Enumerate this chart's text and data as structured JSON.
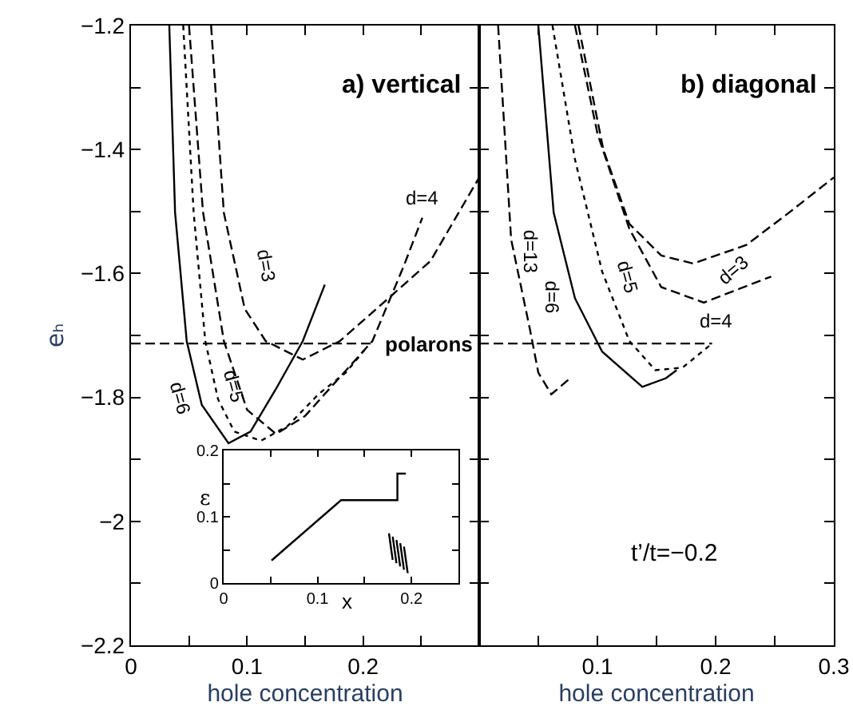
{
  "chart_data": [
    {
      "type": "line",
      "title": "a) vertical",
      "xlabel": "hole concentration",
      "ylabel": "eₕ",
      "xlim": [
        0,
        0.3
      ],
      "ylim": [
        -2.2,
        -1.2
      ],
      "xticks": [
        0,
        {
          "value": 0.05,
          "label": null
        },
        0.1,
        {
          "value": 0.15,
          "label": null
        },
        0.2,
        {
          "value": 0.25,
          "label": null
        }
      ],
      "yticks": [
        {
          "value": -2.2,
          "label": "−2.2"
        },
        {
          "value": -2.1,
          "label": null
        },
        {
          "value": -2.0,
          "label": "−2"
        },
        {
          "value": -1.9,
          "label": null
        },
        {
          "value": -1.8,
          "label": "−1.8"
        },
        {
          "value": -1.7,
          "label": null
        },
        {
          "value": -1.6,
          "label": "−1.6"
        },
        {
          "value": -1.5,
          "label": null
        },
        {
          "value": -1.4,
          "label": "−1.4"
        },
        {
          "value": -1.3,
          "label": null
        },
        {
          "value": -1.2,
          "label": "−1.2"
        }
      ],
      "series": [
        {
          "name": "d=6",
          "color": "#000000",
          "line_style": "solid",
          "x": [
            0.033,
            0.038,
            0.048,
            0.061,
            0.084,
            0.103,
            0.125,
            0.148,
            0.167
          ],
          "values": [
            -1.2,
            -1.502,
            -1.709,
            -1.812,
            -1.874,
            -1.855,
            -1.786,
            -1.709,
            -1.618
          ]
        },
        {
          "name": "d=5",
          "color": "#000000",
          "line_style": "dotted",
          "x": [
            0.045,
            0.054,
            0.064,
            0.075,
            0.089,
            0.112,
            0.135,
            0.162,
            0.185,
            0.201
          ],
          "values": [
            -1.2,
            -1.502,
            -1.709,
            -1.803,
            -1.855,
            -1.87,
            -1.846,
            -1.794,
            -1.76,
            -1.724
          ]
        },
        {
          "name": "d=4",
          "color": "#000000",
          "line_style": "dashed",
          "x": [
            0.05,
            0.062,
            0.08,
            0.1,
            0.125,
            0.15,
            0.171,
            0.208,
            0.235,
            0.251
          ],
          "values": [
            -1.2,
            -1.5,
            -1.709,
            -1.82,
            -1.859,
            -1.83,
            -1.786,
            -1.709,
            -1.588,
            -1.51
          ]
        },
        {
          "name": "d=3",
          "color": "#000000",
          "line_style": "dashed",
          "x": [
            0.069,
            0.08,
            0.098,
            0.116,
            0.148,
            0.18,
            0.217,
            0.258,
            0.3
          ],
          "values": [
            -1.2,
            -1.502,
            -1.657,
            -1.709,
            -1.739,
            -1.709,
            -1.648,
            -1.58,
            -1.445
          ]
        },
        {
          "name": "polarons",
          "color": "#000000",
          "line_style": "dashed",
          "x": [
            0,
            0.21
          ],
          "values": [
            -1.713,
            -1.713
          ]
        }
      ]
    },
    {
      "type": "line",
      "title": "b) diagonal",
      "xlabel": "hole concentration",
      "annotations": [
        "t’/t=−0.2"
      ],
      "xlim": [
        0,
        0.3
      ],
      "ylim": [
        -2.2,
        -1.2
      ],
      "tick_labels": "x",
      "xticks": [
        {
          "value": 0.05,
          "label": null
        },
        0.1,
        {
          "value": 0.15,
          "label": null
        },
        0.2,
        {
          "value": 0.25,
          "label": null
        },
        0.3
      ],
      "yticks": [
        {
          "value": -2.1,
          "label": null
        },
        {
          "value": -2.0,
          "label": null
        },
        {
          "value": -1.9,
          "label": null
        },
        {
          "value": -1.8,
          "label": null
        },
        {
          "value": -1.7,
          "label": null
        },
        {
          "value": -1.6,
          "label": null
        },
        {
          "value": -1.5,
          "label": null
        },
        {
          "value": -1.4,
          "label": null
        },
        {
          "value": -1.3,
          "label": null
        }
      ],
      "series": [
        {
          "name": "d=13",
          "color": "#000000",
          "line_style": "dashed",
          "x": [
            0.016,
            0.027,
            0.043,
            0.05,
            0.061,
            0.077
          ],
          "values": [
            -1.2,
            -1.545,
            -1.691,
            -1.76,
            -1.795,
            -1.769
          ]
        },
        {
          "name": "d=6",
          "color": "#000000",
          "line_style": "solid",
          "x": [
            0.05,
            0.063,
            0.081,
            0.104,
            0.138,
            0.158,
            0.167
          ],
          "values": [
            -1.2,
            -1.502,
            -1.64,
            -1.726,
            -1.783,
            -1.769,
            -1.756
          ]
        },
        {
          "name": "d=5",
          "color": "#000000",
          "line_style": "dotted",
          "x": [
            0.062,
            0.081,
            0.104,
            0.127,
            0.149,
            0.172,
            0.197
          ],
          "values": [
            -1.2,
            -1.416,
            -1.597,
            -1.709,
            -1.756,
            -1.752,
            -1.713
          ]
        },
        {
          "name": "d=4",
          "color": "#000000",
          "line_style": "dashed",
          "x": [
            0.081,
            0.1,
            0.127,
            0.154,
            0.19,
            0.217,
            0.247
          ],
          "values": [
            -1.2,
            -1.374,
            -1.528,
            -1.622,
            -1.647,
            -1.627,
            -1.605
          ]
        },
        {
          "name": "d=3",
          "color": "#000000",
          "line_style": "dashed",
          "x": [
            0.084,
            0.105,
            0.127,
            0.154,
            0.181,
            0.226,
            0.262,
            0.3
          ],
          "values": [
            -1.2,
            -1.4,
            -1.52,
            -1.571,
            -1.584,
            -1.554,
            -1.502,
            -1.445
          ]
        },
        {
          "color": "#000000",
          "line_style": "dashed",
          "x": [
            0,
            0.197
          ],
          "values": [
            -1.713,
            -1.713
          ]
        }
      ]
    },
    {
      "type": "line",
      "xlabel": "x",
      "ylabel": "ε",
      "xlim": [
        0,
        0.25
      ],
      "ylim": [
        0,
        0.2
      ],
      "xticks": [
        0,
        {
          "value": 0.05,
          "label": null
        },
        0.1,
        {
          "value": 0.15,
          "label": null
        },
        0.2
      ],
      "yticks": [
        0,
        {
          "value": 0.05,
          "label": null
        },
        0.1,
        {
          "value": 0.15,
          "label": null
        },
        0.2
      ],
      "series": [
        {
          "color": "#000000",
          "line_style": "solid",
          "x": [
            0.051,
            0.125,
            0.185,
            0.185,
            0.194
          ],
          "values": [
            0.034,
            0.125,
            0.125,
            0.165,
            0.165
          ]
        },
        {
          "color": "#000000",
          "line_style": "solid",
          "x": [
            0.176,
            0.18
          ],
          "values": [
            0.075,
            0.035
          ]
        },
        {
          "color": "#000000",
          "line_style": "solid",
          "x": [
            0.18,
            0.184
          ],
          "values": [
            0.07,
            0.03
          ]
        },
        {
          "color": "#000000",
          "line_style": "solid",
          "x": [
            0.184,
            0.188
          ],
          "values": [
            0.065,
            0.025
          ]
        },
        {
          "color": "#000000",
          "line_style": "solid",
          "x": [
            0.188,
            0.192
          ],
          "values": [
            0.06,
            0.02
          ]
        },
        {
          "color": "#000000",
          "line_style": "solid",
          "x": [
            0.192,
            0.196
          ],
          "values": [
            0.055,
            0.015
          ]
        }
      ]
    }
  ]
}
